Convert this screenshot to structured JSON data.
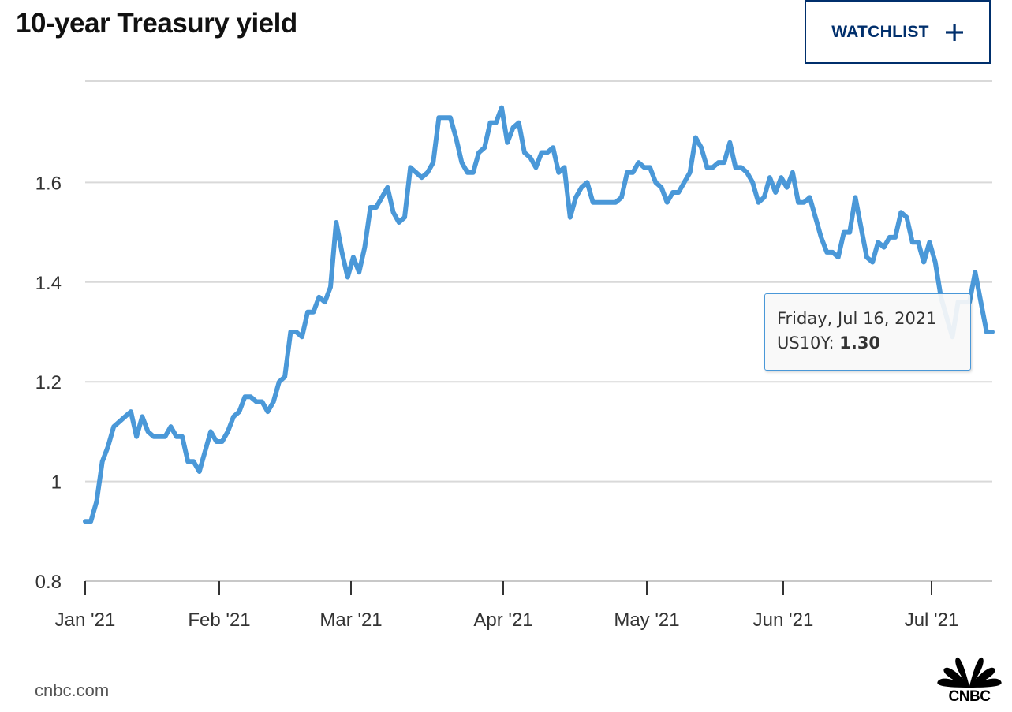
{
  "header": {
    "title": "10-year Treasury yield",
    "watchlist_label": "WATCHLIST"
  },
  "tooltip": {
    "date": "Friday, Jul 16, 2021",
    "series": "US10Y",
    "value": "1.30"
  },
  "footer": {
    "source": "cnbc.com",
    "logo_text": "CNBC"
  },
  "colors": {
    "line": "#4a98d8",
    "grid": "#d9d9d9",
    "button_border": "#002f6c"
  },
  "chart_data": {
    "type": "line",
    "title": "10-year Treasury yield",
    "xlabel": "",
    "ylabel": "",
    "ylim": [
      0.8,
      1.8
    ],
    "yticks": [
      0.8,
      1,
      1.2,
      1.4,
      1.6
    ],
    "ytick_labels": [
      "0.8",
      "1",
      "1.2",
      "1.4",
      "1.6"
    ],
    "xticks": [
      "Jan '21",
      "Feb '21",
      "Mar '21",
      "Apr '21",
      "May '21",
      "Jun '21",
      "Jul '21"
    ],
    "grid": true,
    "series": [
      {
        "name": "US10Y",
        "values": [
          0.92,
          0.92,
          0.96,
          1.04,
          1.07,
          1.11,
          1.12,
          1.13,
          1.14,
          1.09,
          1.13,
          1.1,
          1.09,
          1.09,
          1.09,
          1.11,
          1.09,
          1.09,
          1.04,
          1.04,
          1.02,
          1.06,
          1.1,
          1.08,
          1.08,
          1.1,
          1.13,
          1.14,
          1.17,
          1.17,
          1.16,
          1.16,
          1.14,
          1.16,
          1.2,
          1.21,
          1.3,
          1.3,
          1.29,
          1.34,
          1.34,
          1.37,
          1.36,
          1.39,
          1.52,
          1.46,
          1.41,
          1.45,
          1.42,
          1.47,
          1.55,
          1.55,
          1.57,
          1.59,
          1.54,
          1.52,
          1.53,
          1.63,
          1.62,
          1.61,
          1.62,
          1.64,
          1.73,
          1.73,
          1.73,
          1.69,
          1.64,
          1.62,
          1.62,
          1.66,
          1.67,
          1.72,
          1.72,
          1.75,
          1.68,
          1.71,
          1.72,
          1.66,
          1.65,
          1.63,
          1.66,
          1.66,
          1.67,
          1.62,
          1.63,
          1.53,
          1.57,
          1.59,
          1.6,
          1.56,
          1.56,
          1.56,
          1.56,
          1.56,
          1.57,
          1.62,
          1.62,
          1.64,
          1.63,
          1.63,
          1.6,
          1.59,
          1.56,
          1.58,
          1.58,
          1.6,
          1.62,
          1.69,
          1.67,
          1.63,
          1.63,
          1.64,
          1.64,
          1.68,
          1.63,
          1.63,
          1.62,
          1.6,
          1.56,
          1.57,
          1.61,
          1.58,
          1.61,
          1.59,
          1.62,
          1.56,
          1.56,
          1.57,
          1.53,
          1.49,
          1.46,
          1.46,
          1.45,
          1.5,
          1.5,
          1.57,
          1.51,
          1.45,
          1.44,
          1.48,
          1.47,
          1.49,
          1.49,
          1.54,
          1.53,
          1.48,
          1.48,
          1.44,
          1.48,
          1.44,
          1.37,
          1.33,
          1.29,
          1.36,
          1.36,
          1.36,
          1.42,
          1.36,
          1.3,
          1.3
        ]
      }
    ]
  }
}
